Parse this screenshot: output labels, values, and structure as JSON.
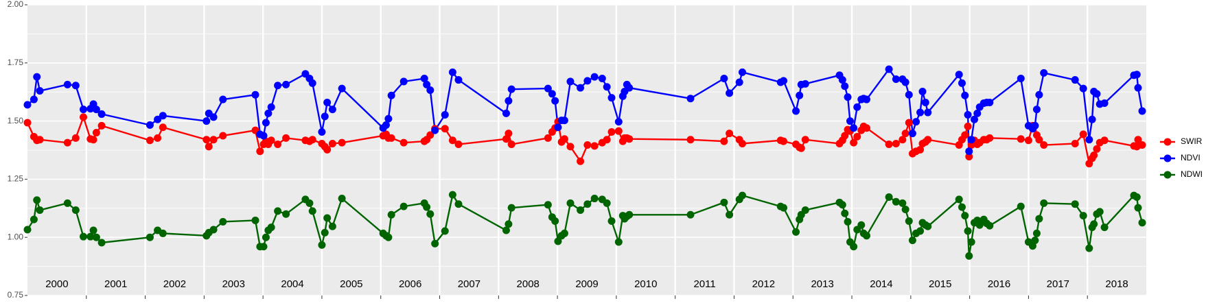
{
  "chart_data": {
    "type": "line",
    "categories": [
      "2000",
      "2001",
      "2002",
      "2003",
      "2004",
      "2005",
      "2006",
      "2007",
      "2008",
      "2009",
      "2010",
      "2011",
      "2012",
      "2013",
      "2014",
      "2015",
      "2016",
      "2017",
      "2018"
    ],
    "x": [
      2000,
      2000.11,
      2000.16,
      2000.21,
      2000.68,
      2000.82,
      2000.95,
      2001.07,
      2001.12,
      2001.17,
      2001.26,
      2002.08,
      2002.21,
      2002.3,
      2003.04,
      2003.08,
      2003.16,
      2003.32,
      2003.87,
      2003.95,
      2004.01,
      2004.05,
      2004.09,
      2004.14,
      2004.25,
      2004.39,
      2004.72,
      2004.79,
      2004.84,
      2005,
      2005.05,
      2005.09,
      2005.18,
      2005.34,
      2006.04,
      2006.09,
      2006.13,
      2006.18,
      2006.39,
      2006.74,
      2006.78,
      2006.84,
      2006.92,
      2007.09,
      2007.22,
      2007.32,
      2008.13,
      2008.17,
      2008.22,
      2008.84,
      2008.91,
      2008.96,
      2009.01,
      2009.07,
      2009.12,
      2009.22,
      2009.39,
      2009.51,
      2009.63,
      2009.76,
      2009.84,
      2009.92,
      2010.04,
      2010.11,
      2010.14,
      2010.18,
      2010.22,
      2011.26,
      2011.83,
      2011.92,
      2012.09,
      2012.14,
      2012.79,
      2012.84,
      2013.05,
      2013.11,
      2013.14,
      2013.21,
      2013.79,
      2013.84,
      2013.88,
      2013.93,
      2013.97,
      2014.03,
      2014.09,
      2014.16,
      2014.2,
      2014.25,
      2014.63,
      2014.75,
      2014.86,
      2014.91,
      2014.97,
      2015.03,
      2015.09,
      2015.16,
      2015.2,
      2015.25,
      2015.29,
      2015.82,
      2015.87,
      2015.92,
      2015.97,
      2015.99,
      2016.03,
      2016.08,
      2016.13,
      2016.17,
      2016.24,
      2016.29,
      2016.34,
      2016.87,
      2017,
      2017.07,
      2017.11,
      2017.14,
      2017.18,
      2017.26,
      2017.79,
      2017.93,
      2018.03,
      2018.08,
      2018.11,
      2018.16,
      2018.21,
      2018.29,
      2018.79,
      2018.84,
      2018.86,
      2018.93
    ],
    "series": [
      {
        "name": "SWIR",
        "color": "#ff0000",
        "values": [
          1.493,
          1.433,
          1.417,
          1.42,
          1.407,
          1.427,
          1.517,
          1.423,
          1.42,
          1.45,
          1.48,
          1.417,
          1.427,
          1.473,
          1.42,
          1.39,
          1.42,
          1.437,
          1.46,
          1.37,
          1.4,
          1.413,
          1.4,
          1.417,
          1.4,
          1.427,
          1.417,
          1.413,
          1.42,
          1.403,
          1.39,
          1.377,
          1.403,
          1.407,
          1.437,
          1.443,
          1.427,
          1.427,
          1.407,
          1.413,
          1.42,
          1.44,
          1.467,
          1.467,
          1.417,
          1.4,
          1.423,
          1.447,
          1.4,
          1.427,
          1.453,
          1.47,
          1.497,
          1.41,
          1.423,
          1.39,
          1.327,
          1.397,
          1.393,
          1.407,
          1.42,
          1.453,
          1.457,
          1.413,
          1.427,
          1.427,
          1.423,
          1.42,
          1.413,
          1.447,
          1.42,
          1.403,
          1.417,
          1.413,
          1.4,
          1.387,
          1.383,
          1.42,
          1.403,
          1.417,
          1.437,
          1.463,
          1.457,
          1.407,
          1.433,
          1.46,
          1.477,
          1.47,
          1.4,
          1.403,
          1.42,
          1.447,
          1.493,
          1.36,
          1.37,
          1.377,
          1.403,
          1.41,
          1.42,
          1.397,
          1.42,
          1.44,
          1.477,
          1.347,
          1.397,
          1.417,
          1.4,
          1.407,
          1.42,
          1.42,
          1.427,
          1.423,
          1.417,
          1.48,
          1.48,
          1.44,
          1.42,
          1.397,
          1.403,
          1.443,
          1.317,
          1.34,
          1.353,
          1.38,
          1.407,
          1.417,
          1.393,
          1.39,
          1.42,
          1.397
        ]
      },
      {
        "name": "NDVI",
        "color": "#0000ff",
        "values": [
          1.57,
          1.593,
          1.69,
          1.63,
          1.657,
          1.653,
          1.55,
          1.553,
          1.573,
          1.55,
          1.53,
          1.483,
          1.507,
          1.523,
          1.5,
          1.533,
          1.517,
          1.593,
          1.613,
          1.443,
          1.437,
          1.493,
          1.533,
          1.56,
          1.653,
          1.657,
          1.703,
          1.683,
          1.663,
          1.453,
          1.52,
          1.58,
          1.55,
          1.64,
          1.47,
          1.483,
          1.51,
          1.61,
          1.67,
          1.683,
          1.657,
          1.633,
          1.46,
          1.527,
          1.71,
          1.677,
          1.533,
          1.587,
          1.637,
          1.64,
          1.617,
          1.587,
          1.473,
          1.503,
          1.503,
          1.67,
          1.643,
          1.673,
          1.69,
          1.683,
          1.647,
          1.6,
          1.497,
          1.607,
          1.627,
          1.657,
          1.643,
          1.597,
          1.683,
          1.62,
          1.667,
          1.71,
          1.667,
          1.673,
          1.543,
          1.61,
          1.657,
          1.66,
          1.697,
          1.677,
          1.65,
          1.603,
          1.5,
          1.47,
          1.56,
          1.593,
          1.597,
          1.593,
          1.723,
          1.68,
          1.68,
          1.667,
          1.613,
          1.447,
          1.497,
          1.537,
          1.627,
          1.58,
          1.537,
          1.7,
          1.663,
          1.61,
          1.527,
          1.37,
          1.42,
          1.507,
          1.533,
          1.56,
          1.577,
          1.58,
          1.58,
          1.683,
          1.48,
          1.467,
          1.48,
          1.55,
          1.613,
          1.707,
          1.677,
          1.64,
          1.42,
          1.507,
          1.627,
          1.617,
          1.573,
          1.577,
          1.697,
          1.7,
          1.643,
          1.543
        ]
      },
      {
        "name": "NDWI",
        "color": "#006400",
        "values": [
          1.033,
          1.077,
          1.16,
          1.117,
          1.147,
          1.117,
          1.003,
          1.003,
          1.03,
          1.0,
          0.977,
          1.0,
          1.03,
          1.017,
          1.007,
          1.02,
          1.033,
          1.067,
          1.073,
          0.96,
          0.96,
          1.0,
          1.03,
          1.043,
          1.113,
          1.1,
          1.163,
          1.147,
          1.113,
          0.967,
          1.02,
          1.083,
          1.047,
          1.167,
          1.017,
          1.007,
          1.0,
          1.097,
          1.133,
          1.147,
          1.13,
          1.1,
          0.973,
          1.027,
          1.183,
          1.143,
          1.03,
          1.057,
          1.127,
          1.14,
          1.087,
          1.07,
          0.983,
          1.007,
          1.017,
          1.147,
          1.117,
          1.143,
          1.167,
          1.163,
          1.147,
          1.07,
          0.98,
          1.093,
          1.08,
          1.09,
          1.097,
          1.097,
          1.15,
          1.097,
          1.163,
          1.18,
          1.133,
          1.127,
          1.023,
          1.077,
          1.097,
          1.117,
          1.15,
          1.14,
          1.103,
          1.067,
          0.98,
          0.96,
          1.033,
          1.053,
          1.017,
          1.007,
          1.173,
          1.153,
          1.147,
          1.12,
          1.07,
          0.987,
          1.017,
          1.027,
          1.063,
          1.053,
          1.047,
          1.163,
          1.13,
          1.093,
          1.027,
          0.92,
          0.98,
          1.063,
          1.073,
          1.053,
          1.077,
          1.06,
          1.05,
          1.133,
          0.98,
          0.963,
          0.987,
          1.017,
          1.08,
          1.147,
          1.143,
          1.093,
          0.953,
          1.043,
          1.057,
          1.1,
          1.11,
          1.043,
          1.18,
          1.173,
          1.127,
          1.063
        ]
      }
    ],
    "xlim": [
      2000,
      2019
    ],
    "xticks": [
      2001,
      2002,
      2003,
      2004,
      2005,
      2006,
      2007,
      2008,
      2009,
      2010,
      2011,
      2012,
      2013,
      2014,
      2015,
      2016,
      2017,
      2018
    ],
    "ylim": [
      0.75,
      2
    ],
    "yticks": [
      0.75,
      {
        "value": 1,
        "label": "1.00"
      },
      1.25,
      {
        "value": 1.5,
        "label": "1.50"
      },
      1.75,
      {
        "value": 2,
        "label": "2.00"
      }
    ],
    "y_minor_grid": [
      0.875,
      1.125,
      1.375,
      1.625,
      1.875
    ],
    "grid": true,
    "legend": "right"
  }
}
